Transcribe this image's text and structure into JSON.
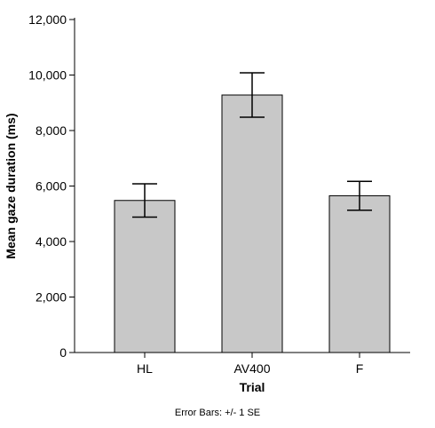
{
  "chart_data": {
    "type": "bar",
    "categories": [
      "HL",
      "AV400",
      "F"
    ],
    "values": [
      5480,
      9280,
      5650
    ],
    "error": [
      600,
      800,
      520
    ],
    "xlabel": "Trial",
    "ylabel": "Mean gaze duration (ms)",
    "ylim": [
      0,
      12000
    ],
    "yticks": [
      0,
      2000,
      4000,
      6000,
      8000,
      10000,
      12000
    ],
    "ytick_labels": [
      "0",
      "2,000",
      "4,000",
      "6,000",
      "8,000",
      "10,000",
      "12,000"
    ],
    "grid": false,
    "note": "Error Bars: +/- 1 SE"
  },
  "colors": {
    "bar_fill": "#c8c8c8",
    "bar_stroke": "#000000",
    "axis": "#000000",
    "text": "#000000"
  }
}
